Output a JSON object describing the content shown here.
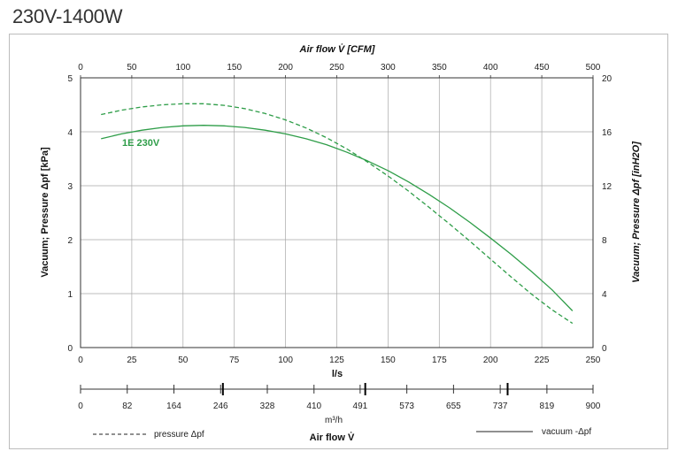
{
  "page": {
    "title": "230V-1400W"
  },
  "colors": {
    "curve": "#2e9d48",
    "grid": "#a8a8a8",
    "axis": "#333333"
  },
  "chart_data": {
    "type": "line",
    "title": "230V-1400W",
    "x": {
      "label": "l/s",
      "range": [
        0,
        250
      ],
      "ticks": [
        0,
        25,
        50,
        75,
        100,
        125,
        150,
        175,
        200,
        225,
        250
      ]
    },
    "x_top": {
      "label_prefix": "Air flow ",
      "label_symbol": "V̇",
      "label_suffix": " [CFM]",
      "range": [
        0,
        500
      ],
      "ticks": [
        0,
        50,
        100,
        150,
        200,
        250,
        300,
        350,
        400,
        450,
        500
      ]
    },
    "x_bottom_scale": {
      "unit_label": "m³/h",
      "title_prefix": "Air flow ",
      "title_symbol": "V̇",
      "range": [
        0,
        900
      ],
      "ticks": [
        "0",
        "82",
        "164",
        "246",
        "328",
        "410",
        "491",
        "573",
        "655",
        "737",
        "819",
        "900"
      ]
    },
    "y": {
      "label": "Vacuum; Pressure  Δpf [kPa]",
      "range": [
        0,
        5
      ],
      "ticks": [
        0,
        1,
        2,
        3,
        4,
        5
      ]
    },
    "y_right": {
      "label": "Vacuum; Pressure  Δpf [inH2O]",
      "range": [
        0,
        20
      ],
      "ticks": [
        0,
        4,
        8,
        12,
        16,
        20
      ]
    },
    "series": [
      {
        "name": "1E 230V",
        "kind": "vacuum",
        "line_style": "solid",
        "x": [
          10,
          20,
          30,
          40,
          50,
          60,
          70,
          80,
          90,
          100,
          110,
          120,
          130,
          140,
          150,
          160,
          170,
          180,
          190,
          200,
          210,
          220,
          230,
          240
        ],
        "y": [
          3.87,
          3.96,
          4.03,
          4.08,
          4.11,
          4.12,
          4.11,
          4.08,
          4.03,
          3.96,
          3.87,
          3.76,
          3.62,
          3.46,
          3.28,
          3.07,
          2.84,
          2.59,
          2.32,
          2.03,
          1.73,
          1.41,
          1.07,
          0.68
        ]
      },
      {
        "name": "1E 230V",
        "kind": "pressure",
        "line_style": "dashed",
        "x": [
          10,
          20,
          30,
          40,
          50,
          60,
          70,
          80,
          90,
          100,
          110,
          120,
          130,
          140,
          150,
          160,
          170,
          180,
          190,
          200,
          210,
          220,
          230,
          240
        ],
        "y": [
          4.32,
          4.4,
          4.46,
          4.5,
          4.52,
          4.52,
          4.49,
          4.43,
          4.34,
          4.22,
          4.07,
          3.89,
          3.68,
          3.44,
          3.18,
          2.9,
          2.6,
          2.29,
          1.97,
          1.64,
          1.31,
          0.99,
          0.7,
          0.45
        ]
      }
    ],
    "legend": {
      "pressure": "pressure Δpf",
      "vacuum": "vacuum -Δpf"
    }
  }
}
